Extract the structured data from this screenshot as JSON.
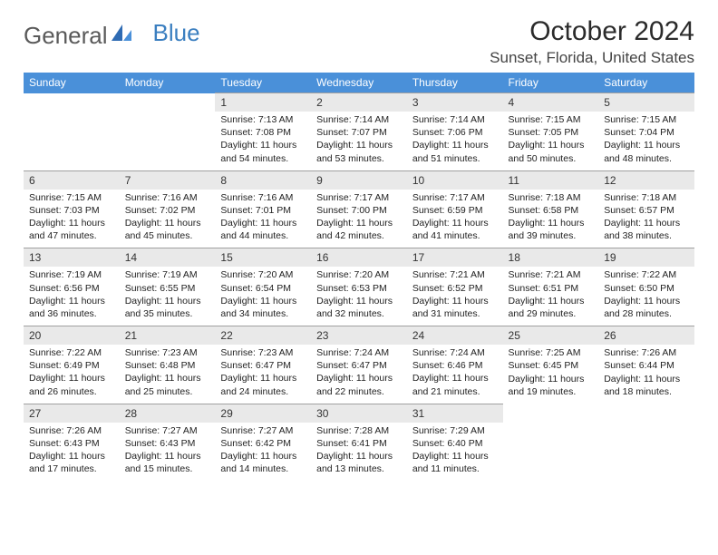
{
  "logo": {
    "part1": "General",
    "part2": "Blue"
  },
  "title": "October 2024",
  "location": "Sunset, Florida, United States",
  "colors": {
    "header_bg": "#4a90d9",
    "header_text": "#ffffff",
    "daynum_bg": "#e9e9e9",
    "border": "#a0a0a0",
    "text": "#222222",
    "logo_gray": "#5a5a5a",
    "logo_blue": "#3b7fc0"
  },
  "day_names": [
    "Sunday",
    "Monday",
    "Tuesday",
    "Wednesday",
    "Thursday",
    "Friday",
    "Saturday"
  ],
  "weeks": [
    {
      "nums": [
        "",
        "",
        "1",
        "2",
        "3",
        "4",
        "5"
      ],
      "cells": [
        null,
        null,
        {
          "sr": "Sunrise: 7:13 AM",
          "ss": "Sunset: 7:08 PM",
          "d1": "Daylight: 11 hours",
          "d2": "and 54 minutes."
        },
        {
          "sr": "Sunrise: 7:14 AM",
          "ss": "Sunset: 7:07 PM",
          "d1": "Daylight: 11 hours",
          "d2": "and 53 minutes."
        },
        {
          "sr": "Sunrise: 7:14 AM",
          "ss": "Sunset: 7:06 PM",
          "d1": "Daylight: 11 hours",
          "d2": "and 51 minutes."
        },
        {
          "sr": "Sunrise: 7:15 AM",
          "ss": "Sunset: 7:05 PM",
          "d1": "Daylight: 11 hours",
          "d2": "and 50 minutes."
        },
        {
          "sr": "Sunrise: 7:15 AM",
          "ss": "Sunset: 7:04 PM",
          "d1": "Daylight: 11 hours",
          "d2": "and 48 minutes."
        }
      ]
    },
    {
      "nums": [
        "6",
        "7",
        "8",
        "9",
        "10",
        "11",
        "12"
      ],
      "cells": [
        {
          "sr": "Sunrise: 7:15 AM",
          "ss": "Sunset: 7:03 PM",
          "d1": "Daylight: 11 hours",
          "d2": "and 47 minutes."
        },
        {
          "sr": "Sunrise: 7:16 AM",
          "ss": "Sunset: 7:02 PM",
          "d1": "Daylight: 11 hours",
          "d2": "and 45 minutes."
        },
        {
          "sr": "Sunrise: 7:16 AM",
          "ss": "Sunset: 7:01 PM",
          "d1": "Daylight: 11 hours",
          "d2": "and 44 minutes."
        },
        {
          "sr": "Sunrise: 7:17 AM",
          "ss": "Sunset: 7:00 PM",
          "d1": "Daylight: 11 hours",
          "d2": "and 42 minutes."
        },
        {
          "sr": "Sunrise: 7:17 AM",
          "ss": "Sunset: 6:59 PM",
          "d1": "Daylight: 11 hours",
          "d2": "and 41 minutes."
        },
        {
          "sr": "Sunrise: 7:18 AM",
          "ss": "Sunset: 6:58 PM",
          "d1": "Daylight: 11 hours",
          "d2": "and 39 minutes."
        },
        {
          "sr": "Sunrise: 7:18 AM",
          "ss": "Sunset: 6:57 PM",
          "d1": "Daylight: 11 hours",
          "d2": "and 38 minutes."
        }
      ]
    },
    {
      "nums": [
        "13",
        "14",
        "15",
        "16",
        "17",
        "18",
        "19"
      ],
      "cells": [
        {
          "sr": "Sunrise: 7:19 AM",
          "ss": "Sunset: 6:56 PM",
          "d1": "Daylight: 11 hours",
          "d2": "and 36 minutes."
        },
        {
          "sr": "Sunrise: 7:19 AM",
          "ss": "Sunset: 6:55 PM",
          "d1": "Daylight: 11 hours",
          "d2": "and 35 minutes."
        },
        {
          "sr": "Sunrise: 7:20 AM",
          "ss": "Sunset: 6:54 PM",
          "d1": "Daylight: 11 hours",
          "d2": "and 34 minutes."
        },
        {
          "sr": "Sunrise: 7:20 AM",
          "ss": "Sunset: 6:53 PM",
          "d1": "Daylight: 11 hours",
          "d2": "and 32 minutes."
        },
        {
          "sr": "Sunrise: 7:21 AM",
          "ss": "Sunset: 6:52 PM",
          "d1": "Daylight: 11 hours",
          "d2": "and 31 minutes."
        },
        {
          "sr": "Sunrise: 7:21 AM",
          "ss": "Sunset: 6:51 PM",
          "d1": "Daylight: 11 hours",
          "d2": "and 29 minutes."
        },
        {
          "sr": "Sunrise: 7:22 AM",
          "ss": "Sunset: 6:50 PM",
          "d1": "Daylight: 11 hours",
          "d2": "and 28 minutes."
        }
      ]
    },
    {
      "nums": [
        "20",
        "21",
        "22",
        "23",
        "24",
        "25",
        "26"
      ],
      "cells": [
        {
          "sr": "Sunrise: 7:22 AM",
          "ss": "Sunset: 6:49 PM",
          "d1": "Daylight: 11 hours",
          "d2": "and 26 minutes."
        },
        {
          "sr": "Sunrise: 7:23 AM",
          "ss": "Sunset: 6:48 PM",
          "d1": "Daylight: 11 hours",
          "d2": "and 25 minutes."
        },
        {
          "sr": "Sunrise: 7:23 AM",
          "ss": "Sunset: 6:47 PM",
          "d1": "Daylight: 11 hours",
          "d2": "and 24 minutes."
        },
        {
          "sr": "Sunrise: 7:24 AM",
          "ss": "Sunset: 6:47 PM",
          "d1": "Daylight: 11 hours",
          "d2": "and 22 minutes."
        },
        {
          "sr": "Sunrise: 7:24 AM",
          "ss": "Sunset: 6:46 PM",
          "d1": "Daylight: 11 hours",
          "d2": "and 21 minutes."
        },
        {
          "sr": "Sunrise: 7:25 AM",
          "ss": "Sunset: 6:45 PM",
          "d1": "Daylight: 11 hours",
          "d2": "and 19 minutes."
        },
        {
          "sr": "Sunrise: 7:26 AM",
          "ss": "Sunset: 6:44 PM",
          "d1": "Daylight: 11 hours",
          "d2": "and 18 minutes."
        }
      ]
    },
    {
      "nums": [
        "27",
        "28",
        "29",
        "30",
        "31",
        "",
        ""
      ],
      "cells": [
        {
          "sr": "Sunrise: 7:26 AM",
          "ss": "Sunset: 6:43 PM",
          "d1": "Daylight: 11 hours",
          "d2": "and 17 minutes."
        },
        {
          "sr": "Sunrise: 7:27 AM",
          "ss": "Sunset: 6:43 PM",
          "d1": "Daylight: 11 hours",
          "d2": "and 15 minutes."
        },
        {
          "sr": "Sunrise: 7:27 AM",
          "ss": "Sunset: 6:42 PM",
          "d1": "Daylight: 11 hours",
          "d2": "and 14 minutes."
        },
        {
          "sr": "Sunrise: 7:28 AM",
          "ss": "Sunset: 6:41 PM",
          "d1": "Daylight: 11 hours",
          "d2": "and 13 minutes."
        },
        {
          "sr": "Sunrise: 7:29 AM",
          "ss": "Sunset: 6:40 PM",
          "d1": "Daylight: 11 hours",
          "d2": "and 11 minutes."
        },
        null,
        null
      ]
    }
  ]
}
